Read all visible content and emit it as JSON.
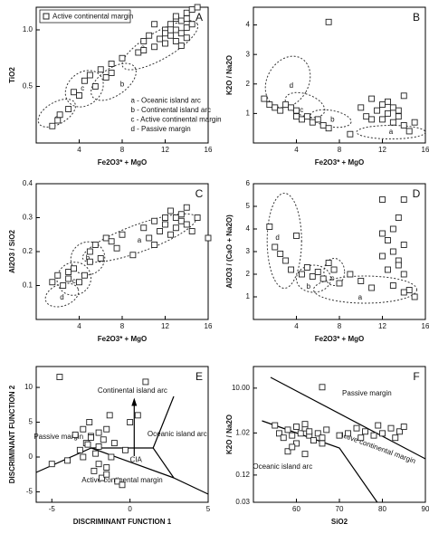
{
  "chart_data": [
    {
      "type": "scatter",
      "panel_label": "A",
      "x_label": "Fe2O3* + MgO",
      "y_label": "TiO2",
      "xlim": [
        0,
        16
      ],
      "xticks": [
        4,
        8,
        12,
        16
      ],
      "ylim": [
        0,
        1.2
      ],
      "yticks": [
        0.5,
        {
          "value": 1,
          "label": "1.0"
        }
      ],
      "annotations": [
        "a",
        "b",
        "c",
        "d",
        "a - Oceanic island arc",
        "b - Continental island arc",
        "c - Active continental margin",
        "d - Passive margin"
      ],
      "series": [
        {
          "name": "Active continental margin",
          "color": "#222222",
          "x": [
            1.5,
            2,
            2.2,
            3,
            3.5,
            4,
            4.5,
            5,
            5.5,
            6,
            6.5,
            7,
            7,
            8,
            10,
            10.5,
            11,
            11.5,
            12,
            12,
            12.5,
            12.5,
            13,
            13,
            13,
            13.5,
            13.5,
            14,
            14,
            14,
            14.5,
            14.5,
            15,
            11,
            12,
            13,
            9.5,
            10,
            14,
            13.5
          ],
          "values": [
            0.15,
            0.2,
            0.25,
            0.3,
            0.45,
            0.42,
            0.55,
            0.6,
            0.5,
            0.65,
            0.58,
            0.62,
            0.7,
            0.75,
            0.9,
            0.95,
            0.85,
            0.92,
            1.0,
            0.88,
            0.95,
            1.05,
            1.0,
            0.9,
            1.1,
            0.97,
            1.08,
            1.02,
            1.15,
            0.93,
            1.18,
            1.05,
            1.2,
            1.05,
            0.97,
            1.12,
            0.8,
            0.82,
            1.1,
            0.86
          ]
        }
      ]
    },
    {
      "type": "scatter",
      "panel_label": "B",
      "x_label": "Fe2O3* + MgO",
      "y_label": "K2O / Na2O",
      "xlim": [
        0,
        16
      ],
      "xticks": [
        4,
        8,
        12,
        16
      ],
      "ylim": [
        0,
        4.6
      ],
      "yticks": [
        1,
        2,
        3,
        4
      ],
      "annotations": [
        "d",
        "c",
        "b",
        "a"
      ],
      "series": [
        {
          "color": "#222222",
          "x": [
            1,
            1.5,
            2,
            2.5,
            3,
            3.5,
            4,
            4,
            4.5,
            5,
            5.5,
            6,
            6.5,
            7,
            7,
            9,
            10,
            10.5,
            11,
            11.5,
            12,
            12,
            12.5,
            13,
            13,
            13.5,
            14,
            14,
            14.5,
            15,
            11,
            12.5,
            13.5
          ],
          "values": [
            1.5,
            1.3,
            1.2,
            1.1,
            1.3,
            1.2,
            0.9,
            1.1,
            0.8,
            0.9,
            0.7,
            0.8,
            0.6,
            0.5,
            4.1,
            0.3,
            1.2,
            0.9,
            1.5,
            1.1,
            0.8,
            1.3,
            1.0,
            0.7,
            1.2,
            0.9,
            1.6,
            0.6,
            0.4,
            0.7,
            0.8,
            1.4,
            1.1
          ]
        }
      ]
    },
    {
      "type": "scatter",
      "panel_label": "C",
      "x_label": "Fe2O3* + MgO",
      "y_label": "Al2O3 / SiO2",
      "xlim": [
        0,
        16
      ],
      "xticks": [
        4,
        8,
        12,
        16
      ],
      "ylim": [
        0,
        0.4
      ],
      "yticks": [
        0.1,
        0.2,
        0.3,
        0.4
      ],
      "annotations": [
        "a",
        "b",
        "c",
        "d"
      ],
      "series": [
        {
          "color": "#222222",
          "x": [
            1.5,
            2,
            2.5,
            3,
            3,
            3.5,
            4,
            4.5,
            5,
            5,
            5.5,
            6,
            6.5,
            7,
            7.5,
            8,
            9,
            10,
            10.5,
            11,
            11.5,
            12,
            12,
            12.5,
            13,
            13,
            13.5,
            13.5,
            14,
            14,
            14.5,
            15,
            16,
            11,
            12.5
          ],
          "values": [
            0.11,
            0.13,
            0.1,
            0.14,
            0.12,
            0.15,
            0.11,
            0.13,
            0.17,
            0.2,
            0.22,
            0.18,
            0.24,
            0.23,
            0.21,
            0.25,
            0.19,
            0.27,
            0.24,
            0.29,
            0.26,
            0.3,
            0.28,
            0.32,
            0.3,
            0.27,
            0.31,
            0.29,
            0.33,
            0.28,
            0.26,
            0.3,
            0.24,
            0.22,
            0.25
          ]
        }
      ]
    },
    {
      "type": "scatter",
      "panel_label": "D",
      "x_label": "Fe2O3* + MgO",
      "y_label": "Al2O3 / (CaO + Na2O)",
      "xlim": [
        0,
        16
      ],
      "xticks": [
        4,
        8,
        12,
        16
      ],
      "ylim": [
        0,
        6
      ],
      "yticks": [
        1,
        2,
        3,
        4,
        5,
        6
      ],
      "annotations": [
        "d",
        "b",
        "c",
        "a"
      ],
      "series": [
        {
          "color": "#222222",
          "x": [
            1.5,
            2,
            2.5,
            3,
            3.5,
            4,
            4.5,
            5,
            5.5,
            6,
            6.5,
            7,
            7.5,
            8,
            9,
            10,
            11,
            12,
            12,
            12.5,
            12.5,
            13,
            13,
            13,
            13.5,
            13.5,
            14,
            14,
            14,
            14.5,
            15,
            12,
            13.5,
            14
          ],
          "values": [
            4.1,
            3.2,
            2.9,
            2.6,
            2.2,
            3.7,
            2.0,
            2.3,
            1.9,
            2.1,
            1.8,
            2.5,
            2.2,
            1.6,
            2.0,
            1.7,
            1.4,
            5.3,
            2.8,
            3.5,
            2.2,
            4.0,
            3.0,
            1.5,
            4.5,
            2.6,
            5.3,
            3.3,
            2.0,
            1.3,
            1.0,
            3.8,
            2.4,
            1.2
          ]
        }
      ]
    },
    {
      "type": "scatter",
      "panel_label": "E",
      "x_label": "DISCRIMINANT FUNCTION 1",
      "y_label": "DISCRIMINANT FUNCTION 2",
      "xlim": [
        -6,
        5
      ],
      "xticks": [
        -5,
        0,
        5
      ],
      "ylim": [
        -6.5,
        13
      ],
      "yticks": [
        -5,
        0,
        5,
        10
      ],
      "annotations": [
        "Continental island arc",
        "Oceanic island arc",
        "Passive margin",
        "Active continental margin",
        "CIA"
      ],
      "series": [
        {
          "color": "#222222",
          "x": [
            -5,
            -4.5,
            -4,
            -3.5,
            -3.2,
            -3,
            -2.8,
            -2.6,
            -2.5,
            -2.3,
            -2.2,
            -2,
            -2,
            -1.8,
            -1.7,
            -1.5,
            -1.5,
            -1.3,
            -1.2,
            -1,
            -0.8,
            -0.5,
            -0.3,
            0,
            0.5,
            1,
            -2.5,
            -2,
            -1.5,
            -3,
            -2.7
          ],
          "values": [
            -1,
            11.5,
            -0.5,
            3.2,
            1,
            4,
            2,
            5,
            3,
            -2,
            0.5,
            3.5,
            1.5,
            -3,
            2.5,
            -1.5,
            4,
            6,
            0,
            2,
            -3.5,
            -4,
            1,
            5,
            6,
            10.8,
            2.8,
            -1,
            -2.5,
            0,
            1.8
          ]
        }
      ]
    },
    {
      "type": "scatter",
      "panel_label": "F",
      "x_label": "SiO2",
      "y_label": "K2O / Na2O",
      "log_y": true,
      "xlim": [
        50,
        90
      ],
      "xticks": [
        60,
        70,
        80,
        90
      ],
      "ylim": [
        0.03,
        30
      ],
      "yticks": [
        0.03,
        0.12,
        1.02,
        {
          "value": 10,
          "label": "10.00"
        }
      ],
      "annotations": [
        "Passive margin",
        "Active continental margin",
        "Oceanic island arc"
      ],
      "series": [
        {
          "color": "#222222",
          "x": [
            55,
            56,
            57,
            58,
            58,
            59,
            60,
            60,
            61,
            62,
            62,
            63,
            63,
            64,
            65,
            66,
            66,
            67,
            70,
            72,
            74,
            75,
            76,
            78,
            79,
            80,
            82,
            83,
            84,
            85,
            59,
            62,
            66
          ],
          "values": [
            1.5,
            1.0,
            0.8,
            1.2,
            0.4,
            0.9,
            1.4,
            0.6,
            1.0,
            1.3,
            0.35,
            0.9,
            1.1,
            0.7,
            1.0,
            10.5,
            0.8,
            1.2,
            0.9,
            1.0,
            1.3,
            0.8,
            1.1,
            0.9,
            1.5,
            1.0,
            1.3,
            0.8,
            1.1,
            1.4,
            0.5,
            1.6,
            0.6
          ]
        }
      ]
    }
  ]
}
